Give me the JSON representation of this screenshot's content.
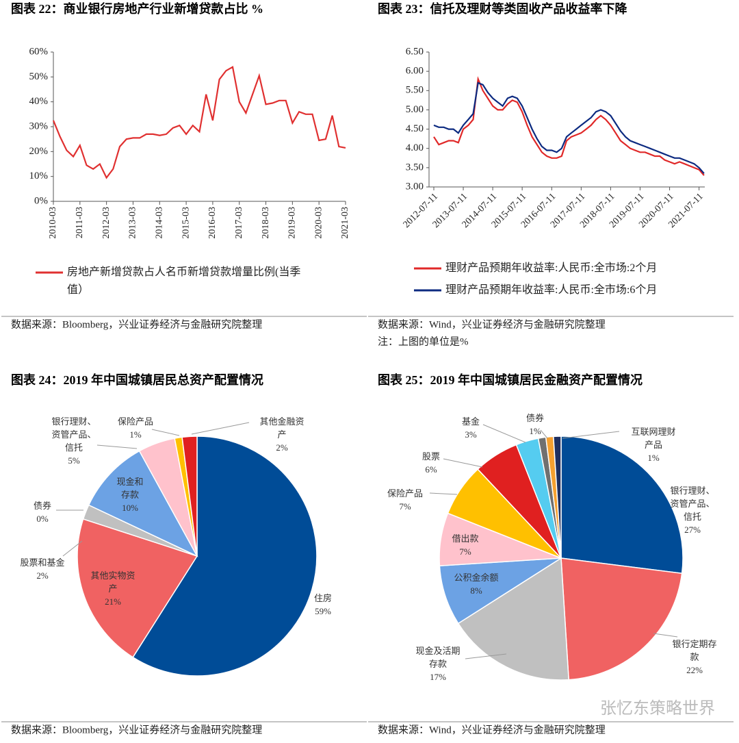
{
  "chart_data": [
    {
      "type": "line",
      "title": "图表 22：商业银行房地产行业新增贷款占比  %",
      "categories": [
        "2010-03",
        null,
        null,
        null,
        "2011-03",
        null,
        null,
        null,
        "2012-03",
        null,
        null,
        null,
        "2013-03",
        null,
        null,
        null,
        "2014-03",
        null,
        null,
        null,
        "2015-03",
        null,
        null,
        null,
        "2016-03",
        null,
        null,
        null,
        "2017-03",
        null,
        null,
        null,
        "2018-03",
        null,
        null,
        null,
        "2019-03",
        null,
        null,
        null,
        "2020-03",
        null,
        null,
        null,
        "2021-03"
      ],
      "series": [
        {
          "name": "房地产新增贷款占人名币新增贷款增量比例(当季值）",
          "color": "#e03030",
          "values": [
            32.5,
            26,
            20.5,
            18,
            22.5,
            14.5,
            13,
            15,
            9.5,
            13,
            22,
            25,
            25.5,
            25.5,
            27,
            27,
            26.5,
            27,
            29.5,
            30.5,
            27,
            30.5,
            28,
            43,
            32.5,
            49,
            52.5,
            54,
            40,
            35.5,
            43,
            50.5,
            39,
            39.5,
            40.5,
            40.5,
            31.5,
            36,
            35,
            35,
            24.5,
            25,
            34.5,
            22,
            21.5
          ]
        }
      ],
      "ylim": [
        0,
        60
      ],
      "yticks": [
        {
          "value": 0,
          "label": "0%"
        },
        {
          "value": 10,
          "label": "10%"
        },
        {
          "value": 20,
          "label": "20%"
        },
        {
          "value": 30,
          "label": "30%"
        },
        {
          "value": 40,
          "label": "40%"
        },
        {
          "value": 50,
          "label": "50%"
        },
        {
          "value": 60,
          "label": "60%"
        }
      ],
      "source": "数据来源：Bloomberg，兴业证券经济与金融研究院整理"
    },
    {
      "type": "line",
      "title": "图表 23：信托及理财等类固收产品收益率下降",
      "x": [
        "2012-07-11",
        "2012-09-11",
        "2012-11-11",
        "2013-01-11",
        "2013-03-11",
        "2013-05-11",
        "2013-07-11",
        "2013-09-11",
        "2013-11-11",
        "2014-01-11",
        "2014-03-11",
        "2014-05-11",
        "2014-07-11",
        "2014-09-11",
        "2014-11-11",
        "2015-01-11",
        "2015-03-11",
        "2015-05-11",
        "2015-07-11",
        "2015-09-11",
        "2015-11-11",
        "2016-01-11",
        "2016-03-11",
        "2016-05-11",
        "2016-07-11",
        "2016-09-11",
        "2016-11-11",
        "2017-01-11",
        "2017-03-11",
        "2017-05-11",
        "2017-07-11",
        "2017-09-11",
        "2017-11-11",
        "2018-01-11",
        "2018-03-11",
        "2018-05-11",
        "2018-07-11",
        "2018-09-11",
        "2018-11-11",
        "2019-01-11",
        "2019-03-11",
        "2019-05-11",
        "2019-07-11",
        "2019-09-11",
        "2019-11-11",
        "2020-01-11",
        "2020-03-11",
        "2020-05-11",
        "2020-07-11",
        "2020-09-11",
        "2020-11-11",
        "2021-01-11",
        "2021-03-11",
        "2021-05-11",
        "2021-07-11",
        "2021-09-11"
      ],
      "series": [
        {
          "name": "理财产品预期年收益率:人民币:全市场:2个月",
          "color": "#e02828",
          "values": [
            4.3,
            4.1,
            4.15,
            4.2,
            4.2,
            4.15,
            4.5,
            4.6,
            4.75,
            5.8,
            5.5,
            5.3,
            5.1,
            5.0,
            5.0,
            5.15,
            5.25,
            5.2,
            4.95,
            4.6,
            4.3,
            4.1,
            3.9,
            3.8,
            3.75,
            3.75,
            3.8,
            4.2,
            4.3,
            4.35,
            4.4,
            4.5,
            4.6,
            4.75,
            4.85,
            4.75,
            4.6,
            4.4,
            4.2,
            4.1,
            4.0,
            3.95,
            3.9,
            3.9,
            3.85,
            3.8,
            3.8,
            3.7,
            3.65,
            3.6,
            3.65,
            3.6,
            3.55,
            3.5,
            3.45,
            3.3
          ]
        },
        {
          "name": "理财产品预期年收益率:人民币:全市场:6个月",
          "color": "#0c2a80",
          "values": [
            4.6,
            4.55,
            4.55,
            4.5,
            4.5,
            4.4,
            4.6,
            4.75,
            4.9,
            5.7,
            5.65,
            5.45,
            5.3,
            5.2,
            5.1,
            5.3,
            5.35,
            5.3,
            5.1,
            4.8,
            4.5,
            4.25,
            4.05,
            3.95,
            3.95,
            3.9,
            4.0,
            4.3,
            4.4,
            4.5,
            4.6,
            4.7,
            4.8,
            4.95,
            5.0,
            4.95,
            4.85,
            4.65,
            4.45,
            4.3,
            4.2,
            4.15,
            4.1,
            4.05,
            4.0,
            3.95,
            3.9,
            3.85,
            3.8,
            3.75,
            3.75,
            3.7,
            3.65,
            3.6,
            3.5,
            3.35
          ]
        }
      ],
      "xlim": [
        "2012-07-11",
        "2021-09-20"
      ],
      "xticks": [
        "2012-07-11",
        "2013-07-11",
        "2014-07-11",
        "2015-07-11",
        "2016-07-11",
        "2017-07-11",
        "2018-07-11",
        "2019-07-11",
        "2020-07-11",
        "2021-07-11"
      ],
      "ylim": [
        3,
        6.5
      ],
      "yticks": [
        {
          "value": 3,
          "label": "3.00"
        },
        {
          "value": 3.5,
          "label": "3.50"
        },
        {
          "value": 4,
          "label": "4.00"
        },
        {
          "value": 4.5,
          "label": "4.50"
        },
        {
          "value": 5,
          "label": "5.00"
        },
        {
          "value": 5.5,
          "label": "5.50"
        },
        {
          "value": 6,
          "label": "6.00"
        },
        {
          "value": 6.5,
          "label": "6.50"
        }
      ],
      "source": "数据来源：Wind，兴业证券经济与金融研究院整理",
      "note": "注：上图的单位是%"
    },
    {
      "type": "pie",
      "title": "图表 24：2019 年中国城镇居民总资产配置情况",
      "categories": [
        "住房",
        "其他实物资产",
        "股票和基金",
        "债券",
        "现金和存款",
        "银行理财、资管产品、信托",
        "保险产品",
        "其他金融资产"
      ],
      "values": [
        59,
        21,
        2,
        0,
        10,
        5,
        1,
        2
      ],
      "value_labels": [
        "59%",
        "21%",
        "2%",
        "0%",
        "10%",
        "5%",
        "1%",
        "2%"
      ],
      "colors": [
        "#004c97",
        "#f06262",
        "#c0c0c0",
        "#8a8a8a",
        "#6ca2e4",
        "#ffc2cc",
        "#ffc000",
        "#e02020"
      ],
      "source": "数据来源：Bloomberg，兴业证券经济与金融研究院整理"
    },
    {
      "type": "pie",
      "title": "图表 25：2019 年中国城镇居民金融资产配置情况",
      "categories": [
        "银行理财、资管产品、信托",
        "银行定期存款",
        "现金及活期存款",
        "公积金余额",
        "借出款",
        "保险产品",
        "股票",
        "基金",
        "债券",
        null,
        "互联网理财产品"
      ],
      "values": [
        27,
        22,
        17,
        8,
        7,
        7,
        6,
        3,
        1,
        1,
        1
      ],
      "value_labels": [
        "27%",
        "22%",
        "17%",
        "8%",
        "7%",
        "7%",
        "6%",
        "3%",
        "1%",
        null,
        "1%"
      ],
      "colors": [
        "#004c97",
        "#f06262",
        "#c0c0c0",
        "#6ca2e4",
        "#ffc2cc",
        "#ffc000",
        "#e02020",
        "#55ccf0",
        "#707070",
        "#f5a030",
        "#1f3060"
      ],
      "source": "数据来源：Wind，兴业证券经济与金融研究院整理"
    }
  ],
  "watermark": "张忆东策略世界"
}
